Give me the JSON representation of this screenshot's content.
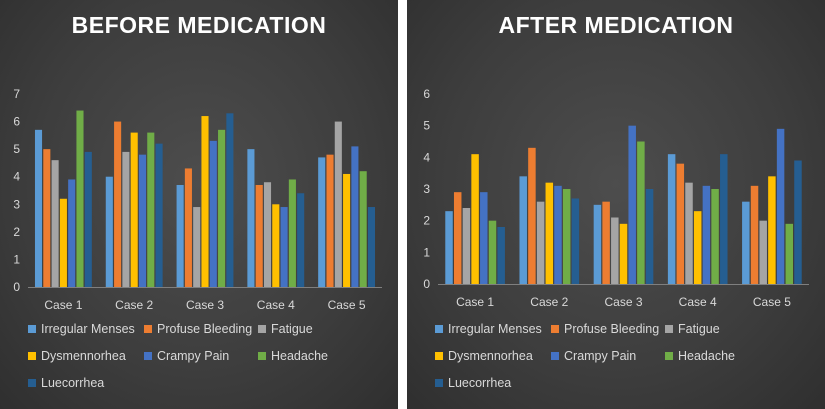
{
  "colors": [
    "#5b9bd5",
    "#ed7d31",
    "#a5a5a5",
    "#ffc000",
    "#4472c4",
    "#70ad47",
    "#255e91"
  ],
  "chart_data": [
    {
      "type": "bar",
      "title": "BEFORE MEDICATION",
      "categories": [
        "Case 1",
        "Case 2",
        "Case 3",
        "Case 4",
        "Case 5"
      ],
      "ylim": [
        0,
        7
      ],
      "yticks": [
        "0",
        "1",
        "2",
        "3",
        "4",
        "5",
        "6",
        "7"
      ],
      "grid": false,
      "legend": "bottom",
      "series": [
        {
          "name": "Irregular Menses",
          "values": [
            5.7,
            4.0,
            3.7,
            5.0,
            4.7
          ]
        },
        {
          "name": "Profuse Bleeding",
          "values": [
            5.0,
            6.0,
            4.3,
            3.7,
            4.8
          ]
        },
        {
          "name": "Fatigue",
          "values": [
            4.6,
            4.9,
            2.9,
            3.8,
            6.0
          ]
        },
        {
          "name": "Dysmennorhea",
          "values": [
            3.2,
            5.6,
            6.2,
            3.0,
            4.1
          ]
        },
        {
          "name": "Crampy Pain",
          "values": [
            3.9,
            4.8,
            5.3,
            2.9,
            5.1
          ]
        },
        {
          "name": "Headache",
          "values": [
            6.4,
            5.6,
            5.7,
            3.9,
            4.2
          ]
        },
        {
          "name": "Luecorrhea",
          "values": [
            4.9,
            5.2,
            6.3,
            3.4,
            2.9
          ]
        }
      ]
    },
    {
      "type": "bar",
      "title": "AFTER MEDICATION",
      "categories": [
        "Case 1",
        "Case 2",
        "Case 3",
        "Case 4",
        "Case 5"
      ],
      "ylim": [
        0,
        6
      ],
      "yticks": [
        "0",
        "1",
        "2",
        "3",
        "4",
        "5",
        "6"
      ],
      "grid": false,
      "legend": "bottom",
      "series": [
        {
          "name": "Irregular Menses",
          "values": [
            2.3,
            3.4,
            2.5,
            4.1,
            2.6
          ]
        },
        {
          "name": "Profuse Bleeding",
          "values": [
            2.9,
            4.3,
            2.6,
            3.8,
            3.1
          ]
        },
        {
          "name": "Fatigue",
          "values": [
            2.4,
            2.6,
            2.1,
            3.2,
            2.0
          ]
        },
        {
          "name": "Dysmennorhea",
          "values": [
            4.1,
            3.2,
            1.9,
            2.3,
            3.4
          ]
        },
        {
          "name": "Crampy Pain",
          "values": [
            2.9,
            3.1,
            5.0,
            3.1,
            4.9
          ]
        },
        {
          "name": "Headache",
          "values": [
            2.0,
            3.0,
            4.5,
            3.0,
            1.9
          ]
        },
        {
          "name": "Luecorrhea",
          "values": [
            1.8,
            2.7,
            3.0,
            4.1,
            3.9
          ]
        }
      ]
    }
  ]
}
